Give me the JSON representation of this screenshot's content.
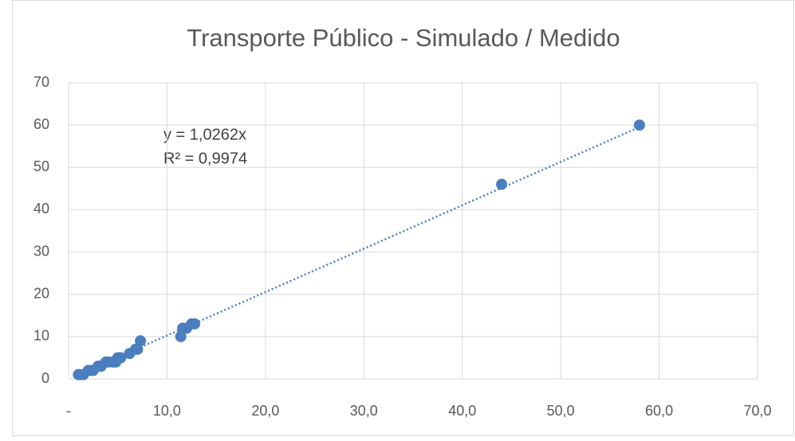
{
  "chart_data": {
    "type": "scatter",
    "title": "Transporte Público - Simulado / Medido",
    "series": [
      {
        "color": "#4a7ebf",
        "x": [
          1.0,
          1.2,
          1.5,
          2.0,
          2.3,
          2.5,
          3.0,
          3.3,
          3.8,
          4.0,
          4.5,
          4.8,
          5.0,
          5.3,
          6.2,
          6.8,
          7.0,
          7.3,
          11.4,
          11.6,
          12.0,
          12.5,
          12.8,
          44.0,
          58.0
        ],
        "values": [
          1,
          1,
          1,
          2,
          2,
          2,
          3,
          3,
          4,
          4,
          4,
          4,
          5,
          5,
          6,
          7,
          7,
          9,
          10,
          12,
          12,
          13,
          13,
          46,
          60
        ]
      }
    ],
    "trendline": {
      "slope": 1.0262,
      "color": "#4a7ebf",
      "style": "dotted",
      "equation": "y = 1,0262x",
      "r_squared": "R² = 0,9974"
    },
    "xlim": [
      0,
      70
    ],
    "xticks": [
      {
        "value": 0,
        "label": "-"
      },
      {
        "value": 10,
        "label": "10,0"
      },
      {
        "value": 20,
        "label": "20,0"
      },
      {
        "value": 30,
        "label": "30,0"
      },
      {
        "value": 40,
        "label": "40,0"
      },
      {
        "value": 50,
        "label": "50,0"
      },
      {
        "value": 60,
        "label": "60,0"
      },
      {
        "value": 70,
        "label": "70,0"
      }
    ],
    "ylim": [
      0,
      70
    ],
    "yticks": [
      0,
      10,
      20,
      30,
      40,
      50,
      60,
      70
    ],
    "grid": true
  }
}
